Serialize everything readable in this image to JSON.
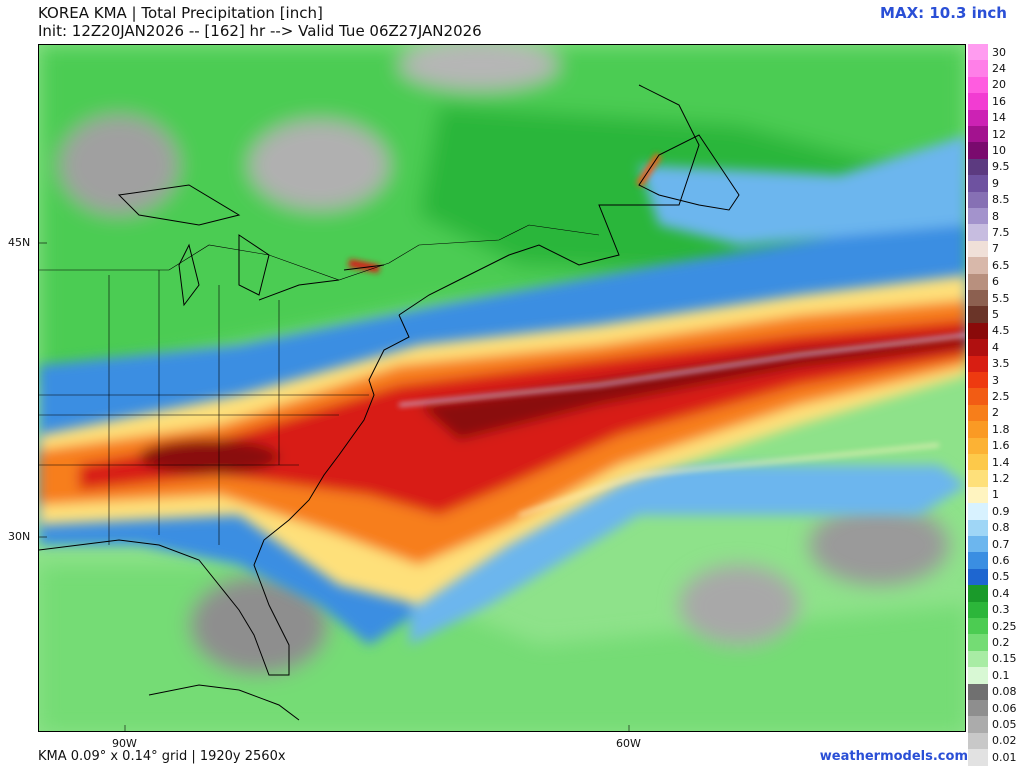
{
  "header": {
    "title_line1": "KOREA KMA | Total Precipitation [inch]",
    "title_line2": "Init: 12Z20JAN2026 -- [162] hr --> Valid Tue 06Z27JAN2026",
    "max_label": "MAX: 10.3 inch"
  },
  "axes": {
    "lat_labels": [
      "45N",
      "30N"
    ],
    "lon_labels": [
      "90W",
      "60W"
    ]
  },
  "footer": {
    "grid_info": "KMA 0.09° x 0.14° grid | 1920y 2560x",
    "brand": "weathermodels.com"
  },
  "legend": [
    {
      "label": "30",
      "color": "#ff9cf0"
    },
    {
      "label": "24",
      "color": "#ff7fe8"
    },
    {
      "label": "20",
      "color": "#ff5ce0"
    },
    {
      "label": "16",
      "color": "#f23cd2"
    },
    {
      "label": "14",
      "color": "#cc22b4"
    },
    {
      "label": "12",
      "color": "#a3128f"
    },
    {
      "label": "10",
      "color": "#7a0a6e"
    },
    {
      "label": "9.5",
      "color": "#5c3a80"
    },
    {
      "label": "9",
      "color": "#6e52a0"
    },
    {
      "label": "8.5",
      "color": "#8670b4"
    },
    {
      "label": "8",
      "color": "#a393cc"
    },
    {
      "label": "7.5",
      "color": "#c7bde0"
    },
    {
      "label": "7",
      "color": "#f0e0d8"
    },
    {
      "label": "6.5",
      "color": "#d8b8aa"
    },
    {
      "label": "6",
      "color": "#b8907e"
    },
    {
      "label": "5.5",
      "color": "#8c6050"
    },
    {
      "label": "5",
      "color": "#6a3428"
    },
    {
      "label": "4.5",
      "color": "#8a0a0a"
    },
    {
      "label": "4",
      "color": "#b01010"
    },
    {
      "label": "3.5",
      "color": "#d81e12"
    },
    {
      "label": "3",
      "color": "#ee3a10"
    },
    {
      "label": "2.5",
      "color": "#f25c14"
    },
    {
      "label": "2",
      "color": "#f77e1a"
    },
    {
      "label": "1.8",
      "color": "#fa9a24"
    },
    {
      "label": "1.6",
      "color": "#fcb234"
    },
    {
      "label": "1.4",
      "color": "#fdc94a"
    },
    {
      "label": "1.2",
      "color": "#fee07a"
    },
    {
      "label": "1",
      "color": "#fff4c0"
    },
    {
      "label": "0.9",
      "color": "#d8f2ff"
    },
    {
      "label": "0.8",
      "color": "#9fd6f6"
    },
    {
      "label": "0.7",
      "color": "#6cb6ee"
    },
    {
      "label": "0.6",
      "color": "#3a8ee2"
    },
    {
      "label": "0.5",
      "color": "#1e66d0"
    },
    {
      "label": "0.4",
      "color": "#1a9a2a"
    },
    {
      "label": "0.3",
      "color": "#2cb63a"
    },
    {
      "label": "0.25",
      "color": "#4ccc52"
    },
    {
      "label": "0.2",
      "color": "#74dc74"
    },
    {
      "label": "0.15",
      "color": "#a8eca4"
    },
    {
      "label": "0.1",
      "color": "#d8f8d4"
    },
    {
      "label": "0.08",
      "color": "#707070"
    },
    {
      "label": "0.06",
      "color": "#8e8e8e"
    },
    {
      "label": "0.05",
      "color": "#ababab"
    },
    {
      "label": "0.02",
      "color": "#c8c8c8"
    },
    {
      "label": "0.01",
      "color": "#e2e2e2"
    }
  ]
}
